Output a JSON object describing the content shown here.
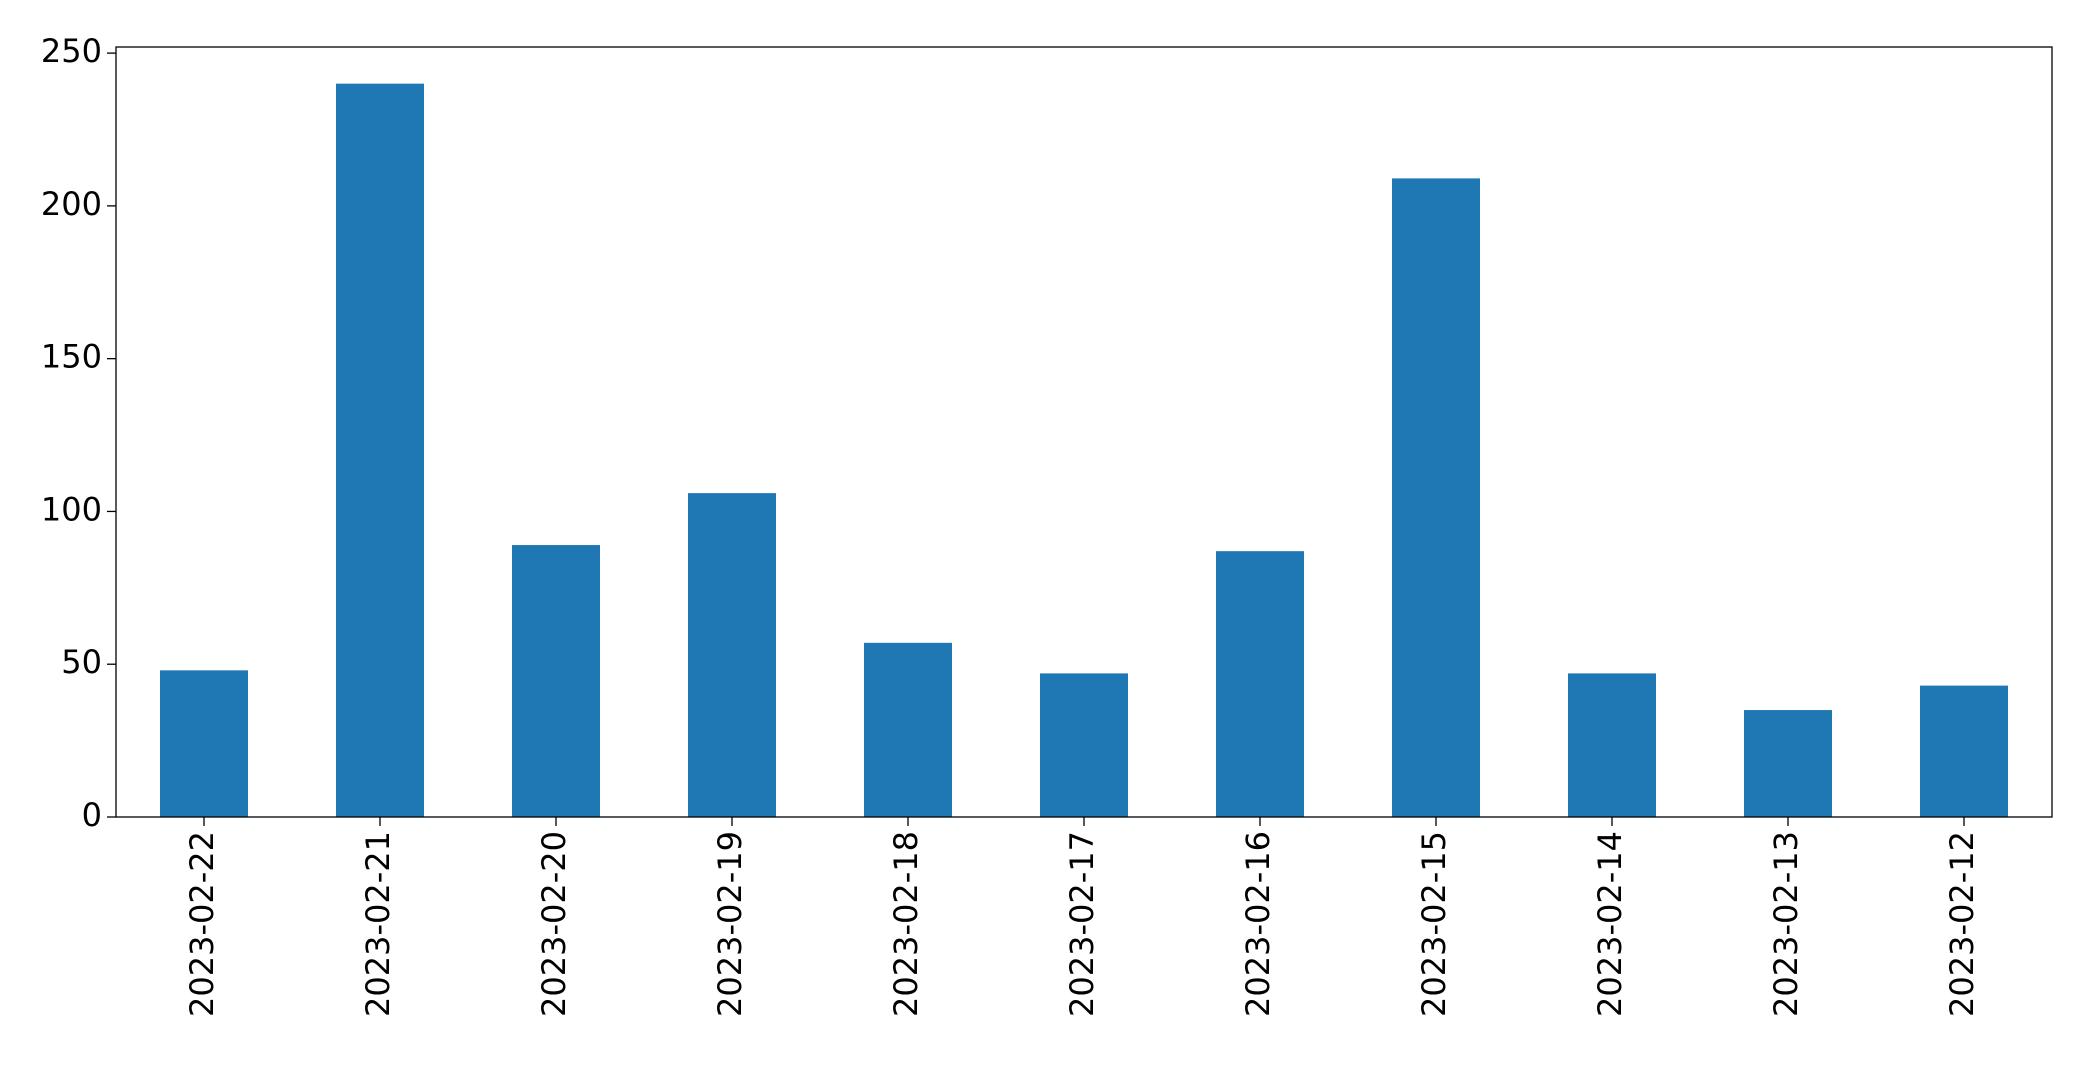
{
  "chart_data": {
    "type": "bar",
    "categories": [
      "2023-02-22",
      "2023-02-21",
      "2023-02-20",
      "2023-02-19",
      "2023-02-18",
      "2023-02-17",
      "2023-02-16",
      "2023-02-15",
      "2023-02-14",
      "2023-02-13",
      "2023-02-12"
    ],
    "values": [
      48,
      240,
      89,
      106,
      57,
      47,
      87,
      209,
      47,
      35,
      43
    ],
    "color": "#1f77b4",
    "ylim": [
      0,
      252
    ],
    "yticks": [
      0,
      50,
      100,
      150,
      200,
      250
    ],
    "grid": false
  }
}
